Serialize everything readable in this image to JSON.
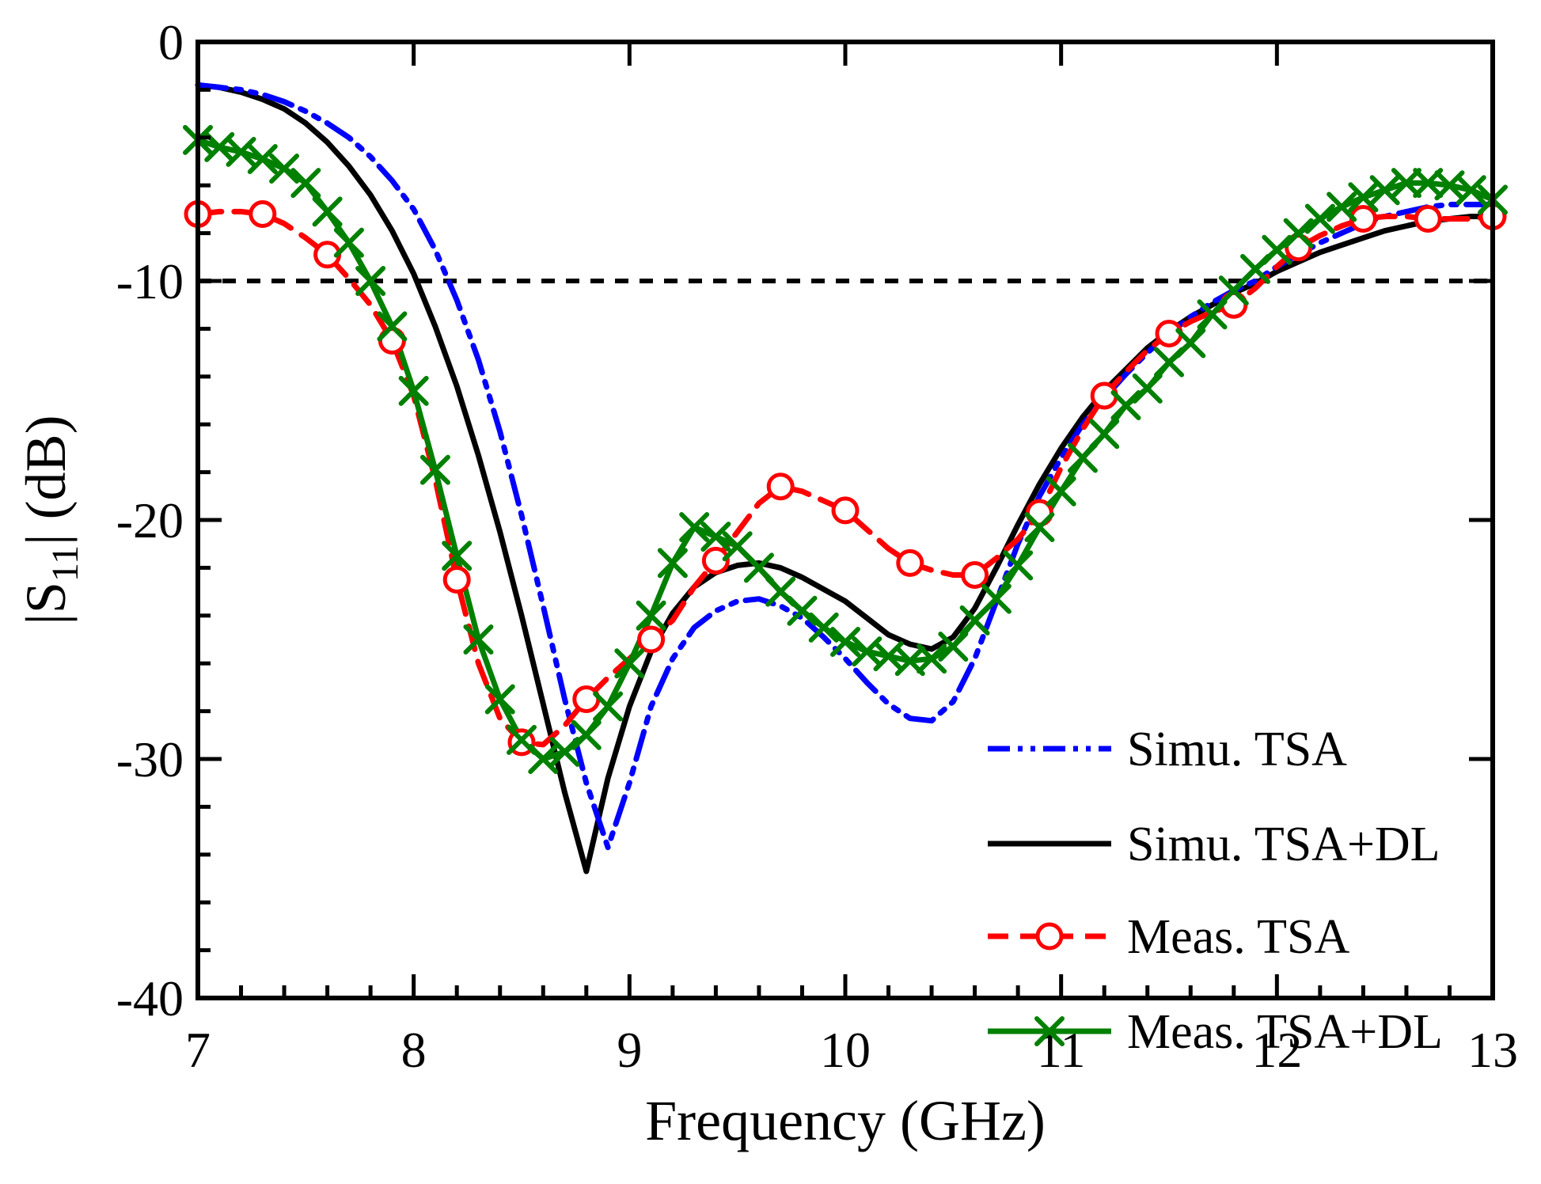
{
  "figure": {
    "background": "#ffffff",
    "axis_color": "#000000"
  },
  "chart_data": {
    "type": "line",
    "title": "",
    "xlabel": "Frequency (GHz)",
    "ylabel": "|S11| (dB)",
    "ylabel_parts": {
      "prefix": "|S",
      "subscript": "11",
      "suffix": "| (dB)"
    },
    "xlim": [
      7,
      13
    ],
    "ylim": [
      -40,
      0
    ],
    "grid": false,
    "legend_position": "lower-right",
    "x_major_ticks": [
      7,
      8,
      9,
      10,
      11,
      12,
      13
    ],
    "x_tick_labels": [
      "7",
      "8",
      "9",
      "10",
      "11",
      "12",
      "13"
    ],
    "x_minor_step": 0.2,
    "y_major_ticks": [
      0,
      -10,
      -20,
      -30,
      -40
    ],
    "y_tick_labels": [
      "0",
      "-10",
      "-20",
      "-30",
      "-40"
    ],
    "y_minor_step": 2,
    "threshold_line": {
      "y": -10,
      "style": "dashed",
      "color": "#000000"
    },
    "x": [
      7.0,
      7.1,
      7.2,
      7.3,
      7.4,
      7.5,
      7.6,
      7.7,
      7.8,
      7.9,
      8.0,
      8.1,
      8.2,
      8.3,
      8.4,
      8.5,
      8.6,
      8.7,
      8.8,
      8.9,
      9.0,
      9.1,
      9.2,
      9.3,
      9.4,
      9.5,
      9.6,
      9.7,
      9.8,
      9.9,
      10.0,
      10.1,
      10.2,
      10.3,
      10.4,
      10.5,
      10.6,
      10.7,
      10.8,
      10.9,
      11.0,
      11.1,
      11.2,
      11.3,
      11.4,
      11.5,
      11.6,
      11.7,
      11.8,
      11.9,
      12.0,
      12.1,
      12.2,
      12.3,
      12.4,
      12.5,
      12.6,
      12.7,
      12.8,
      12.9,
      13.0
    ],
    "series": [
      {
        "name": "Simu. TSA",
        "color": "#0000ff",
        "line": "dash-dot-dot",
        "marker": "none",
        "marker_every": 0,
        "values": [
          -1.8,
          -1.9,
          -2.0,
          -2.2,
          -2.5,
          -2.9,
          -3.4,
          -4.0,
          -4.8,
          -5.8,
          -7.0,
          -8.7,
          -10.8,
          -13.3,
          -16.3,
          -19.8,
          -23.6,
          -27.5,
          -31.0,
          -33.7,
          -31.0,
          -27.8,
          -25.8,
          -24.5,
          -23.8,
          -23.4,
          -23.3,
          -23.6,
          -24.1,
          -24.9,
          -25.8,
          -26.8,
          -27.7,
          -28.3,
          -28.4,
          -27.6,
          -25.8,
          -23.4,
          -21.0,
          -19.0,
          -17.4,
          -16.0,
          -14.9,
          -13.9,
          -13.0,
          -12.2,
          -11.5,
          -10.9,
          -10.4,
          -10.0,
          -9.4,
          -8.9,
          -8.4,
          -8.0,
          -7.6,
          -7.3,
          -7.1,
          -6.9,
          -6.8,
          -6.8,
          -6.8
        ]
      },
      {
        "name": "Simu. TSA+DL",
        "color": "#000000",
        "line": "solid",
        "marker": "none",
        "marker_every": 0,
        "values": [
          -1.8,
          -1.9,
          -2.1,
          -2.4,
          -2.8,
          -3.4,
          -4.2,
          -5.2,
          -6.4,
          -7.9,
          -9.7,
          -11.9,
          -14.4,
          -17.3,
          -20.5,
          -24.0,
          -27.7,
          -31.4,
          -34.7,
          -30.8,
          -27.8,
          -25.5,
          -23.9,
          -22.8,
          -22.2,
          -21.9,
          -21.8,
          -22.0,
          -22.4,
          -22.9,
          -23.4,
          -24.1,
          -24.8,
          -25.2,
          -25.4,
          -24.9,
          -23.7,
          -22.0,
          -20.2,
          -18.5,
          -17.0,
          -15.7,
          -14.6,
          -13.7,
          -12.8,
          -12.1,
          -11.5,
          -11.0,
          -10.5,
          -10.1,
          -9.6,
          -9.2,
          -8.8,
          -8.5,
          -8.2,
          -7.9,
          -7.7,
          -7.5,
          -7.4,
          -7.3,
          -7.3
        ]
      },
      {
        "name": "Meas. TSA",
        "color": "#ff0000",
        "line": "dashed",
        "marker": "circle",
        "marker_every": 3,
        "values": [
          -7.2,
          -7.1,
          -7.1,
          -7.2,
          -7.6,
          -8.2,
          -8.9,
          -9.9,
          -11.0,
          -12.5,
          -14.8,
          -18.3,
          -22.5,
          -26.0,
          -28.3,
          -29.3,
          -29.4,
          -28.6,
          -27.5,
          -26.6,
          -25.8,
          -25.0,
          -24.2,
          -22.8,
          -21.7,
          -20.5,
          -19.3,
          -18.6,
          -18.8,
          -19.2,
          -19.6,
          -20.4,
          -21.2,
          -21.8,
          -22.1,
          -22.3,
          -22.3,
          -21.6,
          -20.8,
          -19.7,
          -17.8,
          -16.2,
          -14.8,
          -13.8,
          -12.9,
          -12.2,
          -11.7,
          -11.3,
          -11.0,
          -10.3,
          -9.4,
          -8.6,
          -8.1,
          -7.7,
          -7.4,
          -7.3,
          -7.3,
          -7.4,
          -7.4,
          -7.4,
          -7.3
        ]
      },
      {
        "name": "Meas. TSA+DL",
        "color": "#008000",
        "line": "solid",
        "marker": "x",
        "marker_every": 1,
        "values": [
          -4.1,
          -4.4,
          -4.6,
          -4.9,
          -5.3,
          -5.9,
          -7.1,
          -8.4,
          -10.0,
          -11.9,
          -14.6,
          -17.9,
          -21.5,
          -25.0,
          -27.5,
          -29.2,
          -30.0,
          -29.7,
          -29.0,
          -27.8,
          -26.0,
          -24.0,
          -21.8,
          -20.3,
          -20.7,
          -21.1,
          -22.0,
          -23.0,
          -23.8,
          -24.5,
          -25.1,
          -25.5,
          -25.7,
          -25.9,
          -25.8,
          -25.3,
          -24.2,
          -23.3,
          -21.9,
          -20.3,
          -18.8,
          -17.4,
          -16.4,
          -15.2,
          -14.5,
          -13.4,
          -12.6,
          -11.4,
          -10.4,
          -9.5,
          -8.7,
          -8.0,
          -7.4,
          -6.9,
          -6.5,
          -6.2,
          -5.9,
          -5.9,
          -6.0,
          -6.2,
          -6.6
        ]
      }
    ]
  }
}
